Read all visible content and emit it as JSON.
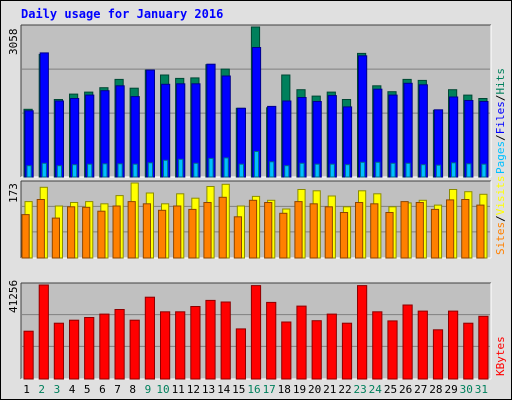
{
  "title": "Daily usage for January 2016",
  "colors": {
    "background": "#e0e0e0",
    "plot_bg": "#c0c0c0",
    "gridline": "#808080",
    "hits": "#00805c",
    "files": "#0000ff",
    "pages": "#00c0ff",
    "visits": "#ffff00",
    "sites": "#ff8000",
    "kbytes": "#ff0000",
    "weekend_label": "#00805c",
    "weekday_label": "#000000"
  },
  "legends": {
    "top": [
      {
        "text": "Pages",
        "color": "#00c0ff"
      },
      {
        "text": "/",
        "color": "#000000"
      },
      {
        "text": "Files",
        "color": "#0000ff"
      },
      {
        "text": "/",
        "color": "#000000"
      },
      {
        "text": "Hits",
        "color": "#00805c"
      }
    ],
    "middle": [
      {
        "text": "Sites",
        "color": "#ff8000"
      },
      {
        "text": "/",
        "color": "#000000"
      },
      {
        "text": "Visits",
        "color": "#ffff00"
      }
    ],
    "bottom": [
      {
        "text": "KBytes",
        "color": "#ff0000"
      }
    ]
  },
  "chart_data": [
    {
      "type": "bar",
      "panel": "hits-files-pages",
      "ymax_label": "3058",
      "ylim": [
        0,
        3058
      ],
      "categories": [
        "1",
        "2",
        "3",
        "4",
        "5",
        "6",
        "7",
        "8",
        "9",
        "10",
        "11",
        "12",
        "13",
        "14",
        "15",
        "16",
        "17",
        "18",
        "19",
        "20",
        "21",
        "22",
        "23",
        "24",
        "25",
        "26",
        "27",
        "28",
        "29",
        "30",
        "31"
      ],
      "weekend": [
        false,
        true,
        true,
        false,
        false,
        false,
        false,
        false,
        true,
        true,
        false,
        false,
        false,
        false,
        false,
        true,
        true,
        false,
        false,
        false,
        false,
        false,
        true,
        true,
        false,
        false,
        false,
        false,
        false,
        true,
        true
      ],
      "series": [
        {
          "name": "Hits",
          "values": [
            1380,
            2500,
            1580,
            1690,
            1730,
            1820,
            1990,
            1810,
            2180,
            2080,
            2010,
            2020,
            2290,
            2200,
            1400,
            3058,
            1410,
            2080,
            1780,
            1650,
            1730,
            1580,
            2520,
            1860,
            1740,
            1990,
            1970,
            1360,
            1780,
            1670,
            1600
          ]
        },
        {
          "name": "Files",
          "values": [
            1350,
            2530,
            1550,
            1600,
            1670,
            1760,
            1860,
            1640,
            2180,
            1890,
            1900,
            1900,
            2300,
            2060,
            1400,
            2640,
            1440,
            1550,
            1620,
            1540,
            1660,
            1430,
            2470,
            1790,
            1670,
            1910,
            1880,
            1370,
            1630,
            1560,
            1540
          ]
        },
        {
          "name": "Pages",
          "values": [
            230,
            280,
            230,
            250,
            260,
            270,
            270,
            260,
            290,
            340,
            360,
            280,
            380,
            390,
            260,
            520,
            310,
            230,
            280,
            260,
            260,
            250,
            300,
            300,
            280,
            280,
            250,
            240,
            290,
            270,
            260
          ]
        }
      ]
    },
    {
      "type": "bar",
      "panel": "visits-sites",
      "ymax_label": "173",
      "ylim": [
        0,
        173
      ],
      "categories": [
        "1",
        "2",
        "3",
        "4",
        "5",
        "6",
        "7",
        "8",
        "9",
        "10",
        "11",
        "12",
        "13",
        "14",
        "15",
        "16",
        "17",
        "18",
        "19",
        "20",
        "21",
        "22",
        "23",
        "24",
        "25",
        "26",
        "27",
        "28",
        "29",
        "30",
        "31"
      ],
      "series": [
        {
          "name": "Visits",
          "values": [
            130,
            163,
            120,
            128,
            130,
            125,
            144,
            173,
            150,
            125,
            148,
            138,
            165,
            170,
            120,
            142,
            133,
            113,
            158,
            155,
            143,
            118,
            155,
            148,
            118,
            127,
            133,
            122,
            158,
            153,
            147
          ]
        },
        {
          "name": "Sites",
          "values": [
            100,
            135,
            92,
            118,
            117,
            108,
            120,
            130,
            125,
            110,
            120,
            112,
            128,
            140,
            95,
            133,
            128,
            103,
            130,
            125,
            118,
            105,
            128,
            125,
            105,
            130,
            128,
            112,
            134,
            135,
            122
          ]
        }
      ]
    },
    {
      "type": "bar",
      "panel": "kbytes",
      "ymax_label": "41256",
      "ylim": [
        0,
        41256
      ],
      "categories": [
        "1",
        "2",
        "3",
        "4",
        "5",
        "6",
        "7",
        "8",
        "9",
        "10",
        "11",
        "12",
        "13",
        "14",
        "15",
        "16",
        "17",
        "18",
        "19",
        "20",
        "21",
        "22",
        "23",
        "24",
        "25",
        "26",
        "27",
        "28",
        "29",
        "30",
        "31"
      ],
      "series": [
        {
          "name": "KBytes",
          "values": [
            21000,
            41256,
            24500,
            25800,
            27000,
            28500,
            30500,
            25800,
            35900,
            29500,
            29500,
            31800,
            34500,
            33800,
            22000,
            41000,
            33600,
            25000,
            32000,
            25600,
            28500,
            24500,
            41000,
            29500,
            25500,
            32500,
            29800,
            21600,
            29800,
            24500,
            27500
          ]
        }
      ]
    }
  ]
}
